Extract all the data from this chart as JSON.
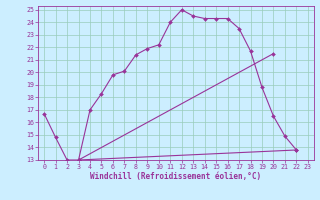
{
  "xlabel": "Windchill (Refroidissement éolien,°C)",
  "bg_color": "#cceeff",
  "line_color": "#993399",
  "grid_color": "#99ccbb",
  "xlim": [
    -0.5,
    23.5
  ],
  "ylim": [
    13,
    25.3
  ],
  "xticks": [
    0,
    1,
    2,
    3,
    4,
    5,
    6,
    7,
    8,
    9,
    10,
    11,
    12,
    13,
    14,
    15,
    16,
    17,
    18,
    19,
    20,
    21,
    22,
    23
  ],
  "yticks": [
    13,
    14,
    15,
    16,
    17,
    18,
    19,
    20,
    21,
    22,
    23,
    24,
    25
  ],
  "line1_x": [
    0,
    1,
    2,
    3,
    4,
    5,
    6,
    7,
    8,
    9,
    10,
    11,
    12,
    13,
    14,
    15,
    16,
    17,
    18,
    19,
    20,
    21,
    22
  ],
  "line1_y": [
    16.7,
    14.8,
    13.0,
    13.0,
    17.0,
    18.3,
    19.8,
    20.1,
    21.4,
    21.9,
    22.2,
    24.0,
    25.0,
    24.5,
    24.3,
    24.3,
    24.3,
    23.5,
    21.7,
    18.8,
    16.5,
    14.9,
    13.8
  ],
  "line2_x": [
    3,
    22
  ],
  "line2_y": [
    13.0,
    13.8
  ],
  "line3_x": [
    3,
    20
  ],
  "line3_y": [
    13.0,
    21.5
  ],
  "xlabel_fontsize": 5.5,
  "tick_fontsize": 4.8
}
